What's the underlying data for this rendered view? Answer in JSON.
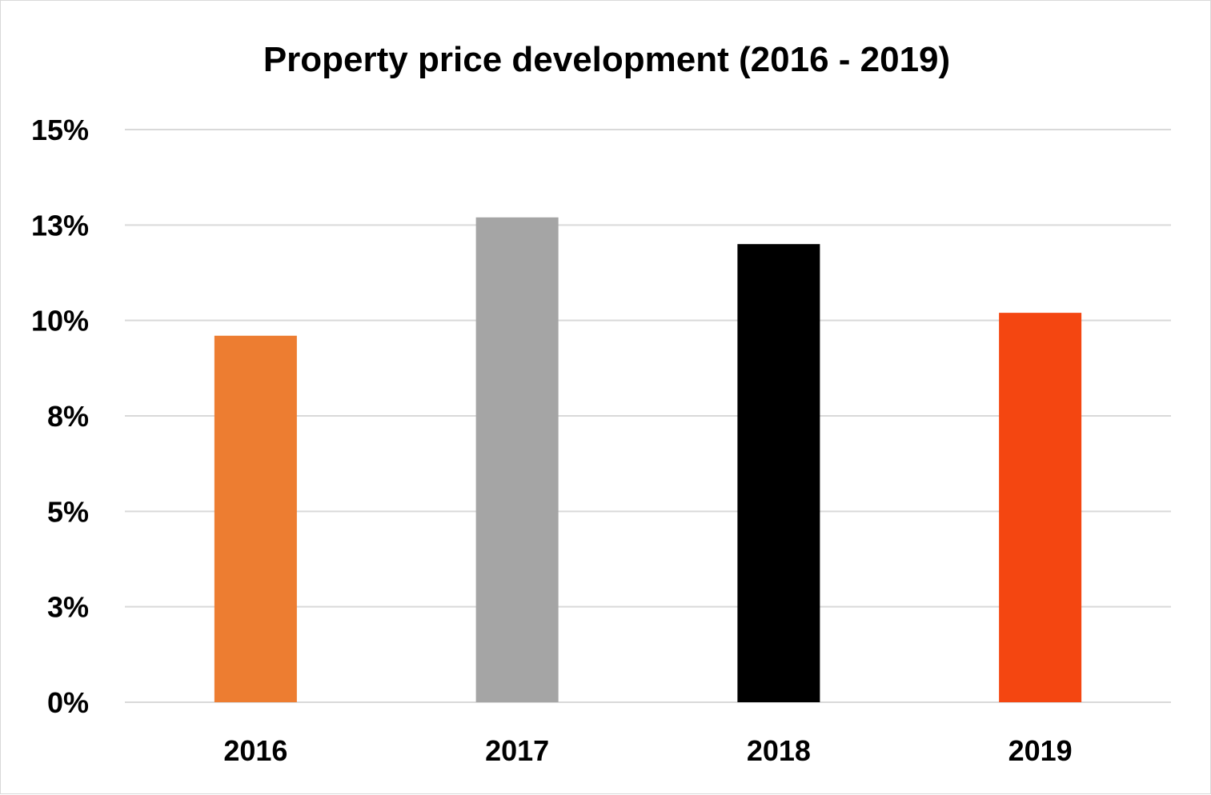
{
  "chart_data": {
    "type": "bar",
    "title": "Property price development (2016 - 2019)",
    "categories": [
      "2016",
      "2017",
      "2018",
      "2019"
    ],
    "values": [
      9.6,
      12.7,
      12.0,
      10.2
    ],
    "colors": [
      "#ED7D31",
      "#A5A5A5",
      "#000000",
      "#F44611"
    ],
    "ylim": [
      0,
      15
    ],
    "yticks": [
      0,
      2.5,
      5,
      7.5,
      10,
      12.5,
      15
    ],
    "ytick_labels": [
      "0%",
      "3%",
      "5%",
      "8%",
      "10%",
      "13%",
      "15%"
    ],
    "grid": true,
    "legend": "none"
  }
}
